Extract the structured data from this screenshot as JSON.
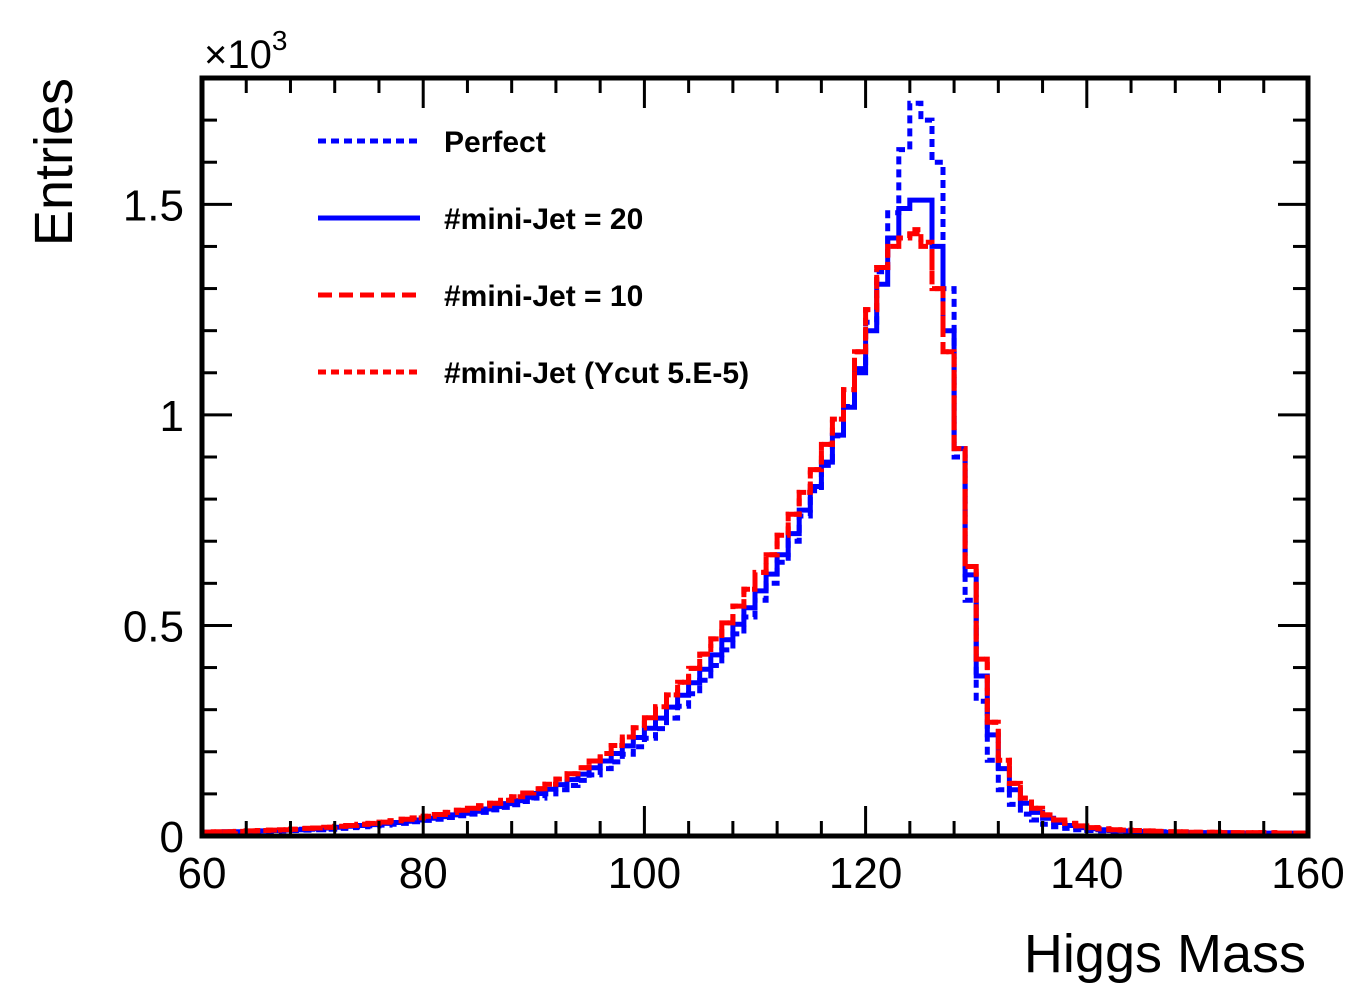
{
  "chart_data": {
    "type": "line",
    "xlabel": "Higgs Mass",
    "ylabel": "Entries",
    "xlim": [
      60,
      160
    ],
    "ylim": [
      0,
      1.8
    ],
    "y_multiplier": "×10",
    "y_multiplier_exponent": "3",
    "x_ticks": [
      60,
      80,
      100,
      120,
      140,
      160
    ],
    "x_tick_labels": [
      "60",
      "80",
      "100",
      "120",
      "140",
      "160"
    ],
    "y_ticks": [
      0,
      0.5,
      1,
      1.5
    ],
    "y_tick_labels": [
      "0",
      "0.5",
      "1",
      "1.5"
    ],
    "legend_position": "top-left",
    "grid": false,
    "bin_edges_start": 60,
    "bin_width": 1,
    "series": [
      {
        "name": "Perfect",
        "color": "#0000ff",
        "style": "dotted",
        "values": [
          0.008,
          0.008,
          0.009,
          0.009,
          0.01,
          0.01,
          0.011,
          0.012,
          0.013,
          0.014,
          0.015,
          0.016,
          0.018,
          0.02,
          0.022,
          0.024,
          0.026,
          0.028,
          0.03,
          0.034,
          0.037,
          0.04,
          0.044,
          0.048,
          0.052,
          0.056,
          0.062,
          0.068,
          0.074,
          0.082,
          0.09,
          0.1,
          0.11,
          0.12,
          0.132,
          0.145,
          0.16,
          0.176,
          0.194,
          0.212,
          0.232,
          0.255,
          0.28,
          0.308,
          0.338,
          0.37,
          0.405,
          0.442,
          0.48,
          0.52,
          0.56,
          0.6,
          0.65,
          0.7,
          0.76,
          0.82,
          0.88,
          0.95,
          1.02,
          1.11,
          1.22,
          1.34,
          1.48,
          1.63,
          1.74,
          1.7,
          1.6,
          1.3,
          0.9,
          0.56,
          0.32,
          0.18,
          0.11,
          0.075,
          0.052,
          0.038,
          0.028,
          0.022,
          0.018,
          0.015,
          0.013,
          0.012,
          0.011,
          0.01,
          0.009,
          0.009,
          0.008,
          0.008,
          0.008,
          0.007,
          0.007,
          0.007,
          0.007,
          0.006,
          0.006,
          0.006,
          0.006,
          0.006,
          0.006,
          0.006
        ]
      },
      {
        "name": "#mini-Jet = 20",
        "color": "#0000ff",
        "style": "solid",
        "values": [
          0.009,
          0.009,
          0.01,
          0.01,
          0.011,
          0.012,
          0.013,
          0.014,
          0.015,
          0.016,
          0.017,
          0.019,
          0.021,
          0.023,
          0.025,
          0.027,
          0.03,
          0.032,
          0.035,
          0.038,
          0.042,
          0.046,
          0.05,
          0.054,
          0.059,
          0.064,
          0.07,
          0.077,
          0.084,
          0.092,
          0.101,
          0.111,
          0.122,
          0.134,
          0.147,
          0.162,
          0.178,
          0.196,
          0.214,
          0.234,
          0.256,
          0.28,
          0.306,
          0.334,
          0.364,
          0.396,
          0.43,
          0.466,
          0.503,
          0.542,
          0.582,
          0.622,
          0.668,
          0.718,
          0.774,
          0.83,
          0.888,
          0.952,
          1.018,
          1.1,
          1.2,
          1.31,
          1.42,
          1.49,
          1.51,
          1.51,
          1.4,
          1.2,
          0.92,
          0.62,
          0.38,
          0.24,
          0.16,
          0.11,
          0.078,
          0.056,
          0.042,
          0.032,
          0.025,
          0.02,
          0.017,
          0.015,
          0.013,
          0.012,
          0.011,
          0.01,
          0.01,
          0.009,
          0.009,
          0.008,
          0.008,
          0.008,
          0.008,
          0.007,
          0.007,
          0.007,
          0.007,
          0.007,
          0.007,
          0.007
        ]
      },
      {
        "name": "#mini-Jet = 10",
        "color": "#ff0000",
        "style": "dashed",
        "values": [
          0.009,
          0.01,
          0.01,
          0.011,
          0.012,
          0.013,
          0.014,
          0.015,
          0.016,
          0.018,
          0.019,
          0.021,
          0.023,
          0.025,
          0.028,
          0.03,
          0.033,
          0.036,
          0.04,
          0.043,
          0.047,
          0.051,
          0.056,
          0.061,
          0.066,
          0.072,
          0.078,
          0.085,
          0.093,
          0.102,
          0.112,
          0.123,
          0.135,
          0.148,
          0.162,
          0.178,
          0.196,
          0.215,
          0.235,
          0.257,
          0.281,
          0.307,
          0.335,
          0.365,
          0.398,
          0.432,
          0.468,
          0.506,
          0.546,
          0.586,
          0.626,
          0.668,
          0.714,
          0.764,
          0.816,
          0.87,
          0.93,
          0.99,
          1.06,
          1.15,
          1.25,
          1.35,
          1.4,
          1.42,
          1.43,
          1.4,
          1.3,
          1.15,
          0.92,
          0.64,
          0.42,
          0.27,
          0.18,
          0.125,
          0.09,
          0.066,
          0.05,
          0.038,
          0.03,
          0.024,
          0.02,
          0.017,
          0.015,
          0.014,
          0.013,
          0.012,
          0.011,
          0.01,
          0.01,
          0.009,
          0.009,
          0.009,
          0.008,
          0.008,
          0.008,
          0.008,
          0.008,
          0.007,
          0.007,
          0.007
        ]
      },
      {
        "name": "#mini-Jet (Ycut 5.E-5)",
        "color": "#ff0000",
        "style": "dotted",
        "values": [
          0.009,
          0.01,
          0.01,
          0.011,
          0.012,
          0.013,
          0.014,
          0.015,
          0.016,
          0.018,
          0.019,
          0.021,
          0.023,
          0.025,
          0.028,
          0.03,
          0.033,
          0.036,
          0.04,
          0.043,
          0.047,
          0.051,
          0.056,
          0.061,
          0.066,
          0.072,
          0.078,
          0.085,
          0.093,
          0.102,
          0.112,
          0.123,
          0.135,
          0.148,
          0.162,
          0.178,
          0.196,
          0.215,
          0.235,
          0.257,
          0.281,
          0.307,
          0.335,
          0.365,
          0.398,
          0.432,
          0.468,
          0.506,
          0.546,
          0.586,
          0.626,
          0.668,
          0.714,
          0.764,
          0.816,
          0.87,
          0.93,
          0.99,
          1.06,
          1.15,
          1.25,
          1.35,
          1.4,
          1.42,
          1.44,
          1.41,
          1.3,
          1.15,
          0.92,
          0.64,
          0.42,
          0.27,
          0.18,
          0.125,
          0.09,
          0.066,
          0.05,
          0.038,
          0.03,
          0.024,
          0.02,
          0.017,
          0.015,
          0.014,
          0.013,
          0.012,
          0.011,
          0.01,
          0.01,
          0.009,
          0.009,
          0.009,
          0.008,
          0.008,
          0.008,
          0.008,
          0.008,
          0.007,
          0.007,
          0.007
        ]
      }
    ]
  }
}
